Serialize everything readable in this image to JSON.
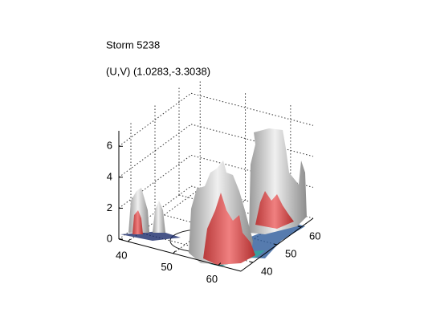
{
  "chart_data": {
    "type": "isosurface3d",
    "title": "Storm 5238",
    "subtitle": "(U,V) (1.0283,-3.3038)",
    "xlim": [
      38,
      65
    ],
    "xticks": [
      40,
      50,
      60
    ],
    "ylim": [
      35,
      65
    ],
    "yticks": [
      40,
      50,
      60
    ],
    "zlim": [
      0,
      7
    ],
    "zticks": [
      0,
      2,
      4,
      6
    ],
    "grid": true
  }
}
